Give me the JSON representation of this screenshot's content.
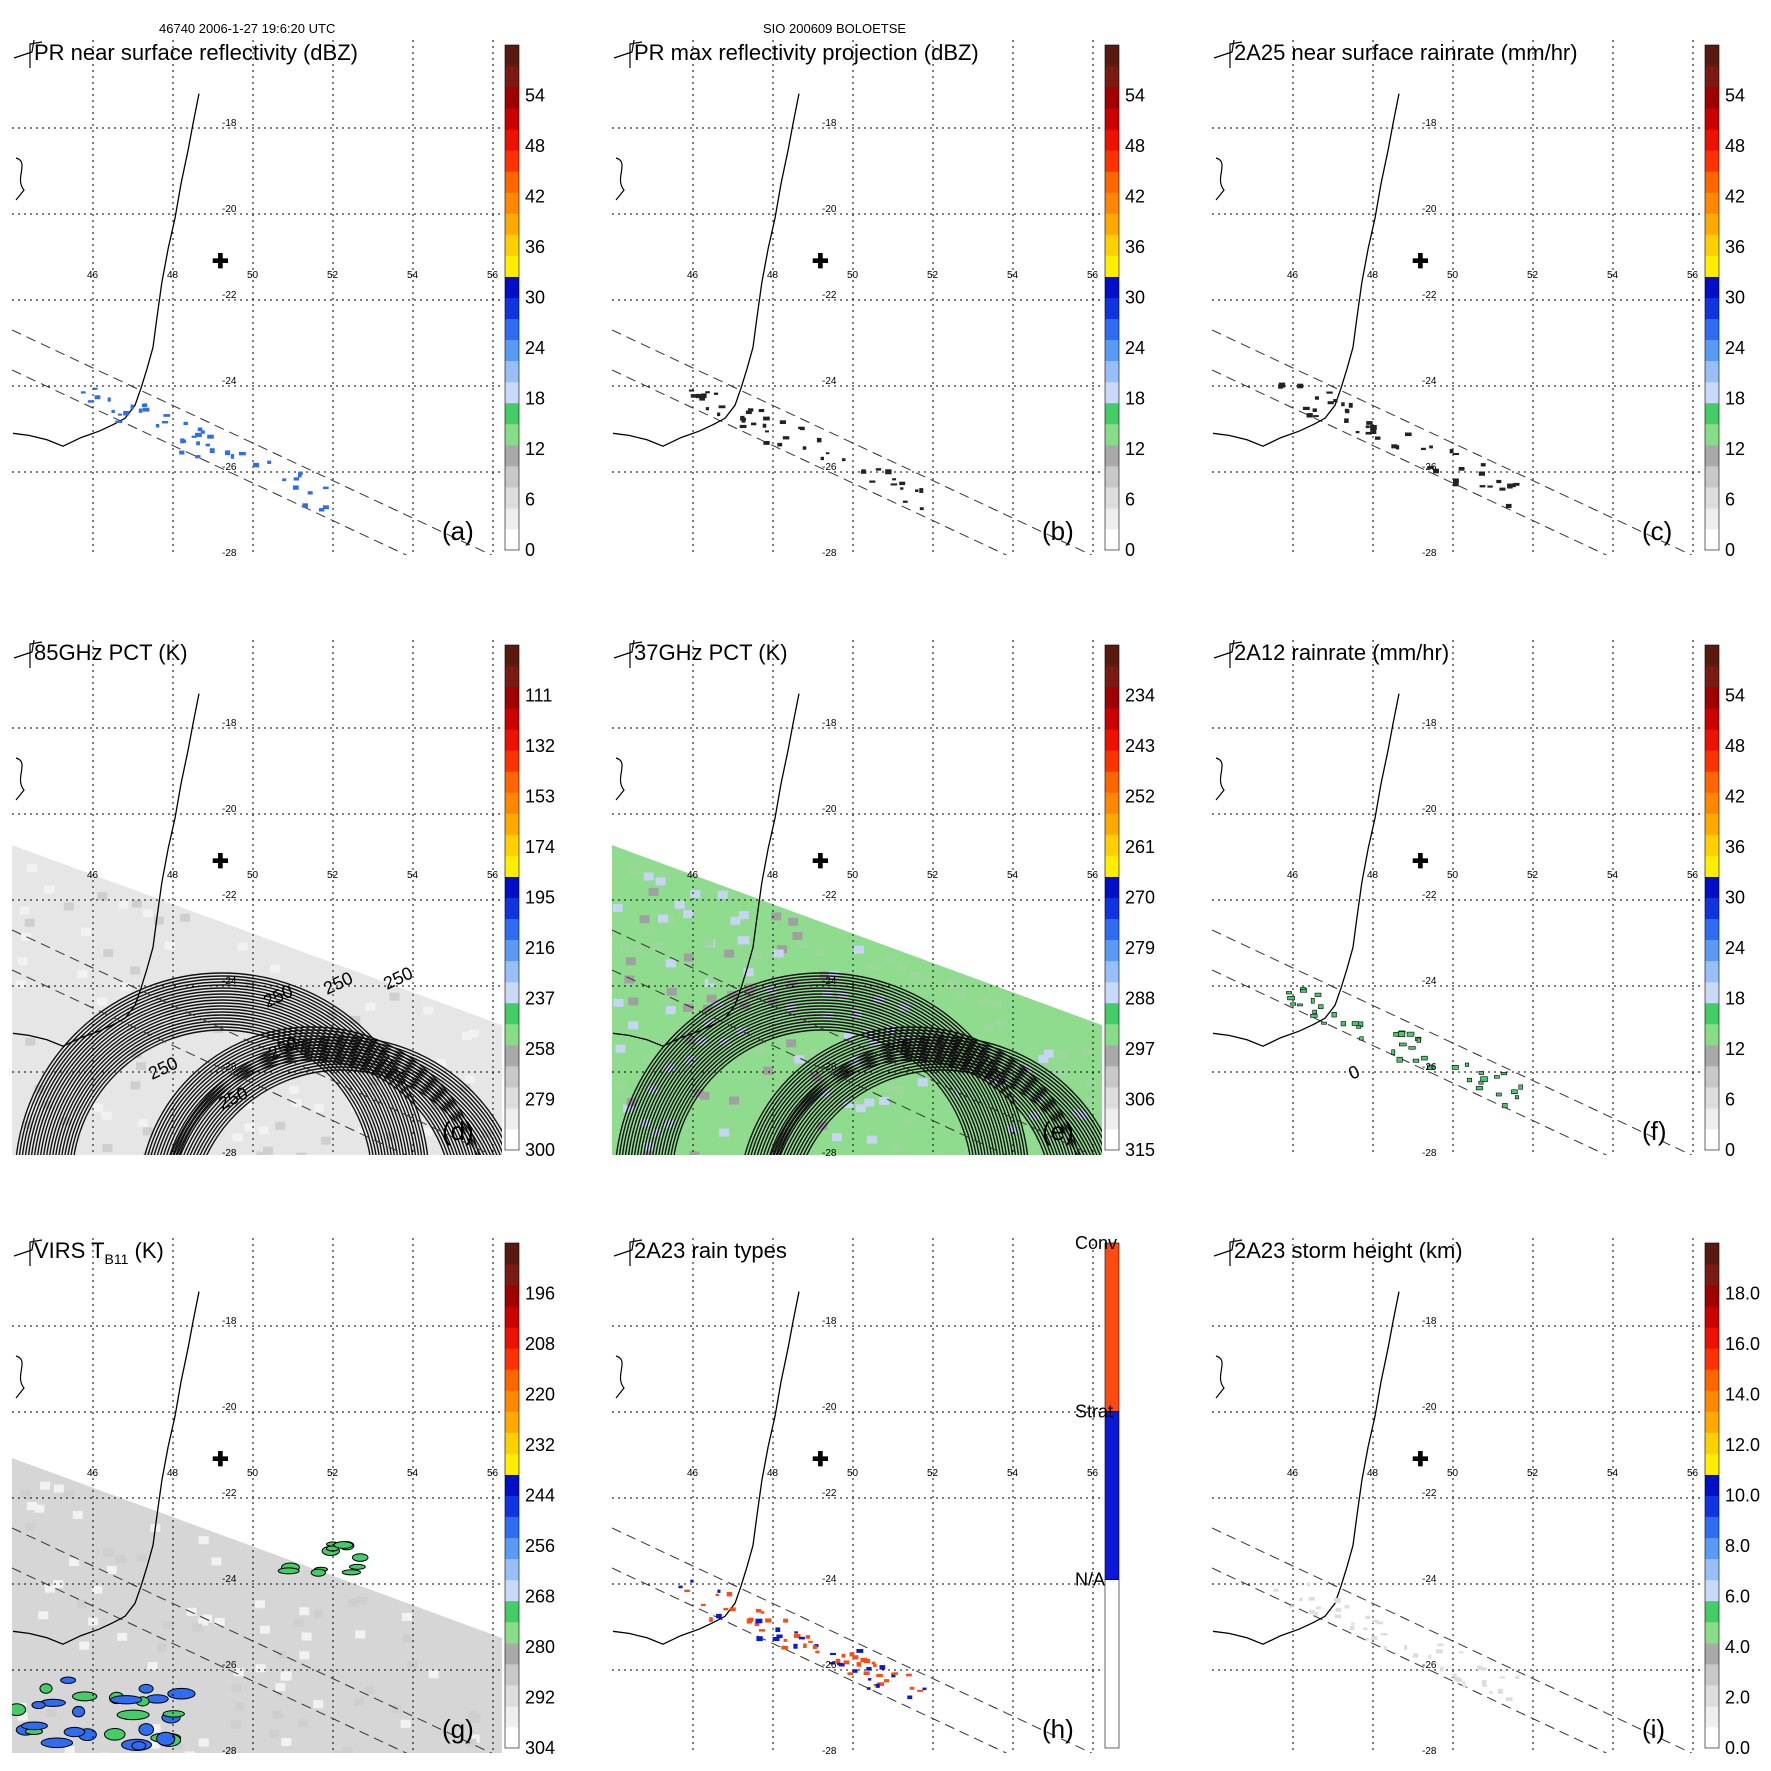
{
  "header": {
    "left": "46740 2006-1-27 19:6:20 UTC",
    "center": "SIO 200609 BOLOETSE"
  },
  "lon_ticks": [
    "46",
    "48",
    "50",
    "52",
    "54",
    "56"
  ],
  "lat_ticks": [
    "-18",
    "-20",
    "-22",
    "-24",
    "-26",
    "-28"
  ],
  "colors": {
    "scale": [
      "#ffffff",
      "#eeeeee",
      "#dddddd",
      "#c8c8c8",
      "#aaaaaa",
      "#88dd88",
      "#44cc66",
      "#c8d8f8",
      "#98c0f8",
      "#5a9cf5",
      "#2e6cf0",
      "#1034e0",
      "#0010c8",
      "#ffee00",
      "#ffd000",
      "#ffaa00",
      "#ff8800",
      "#ff6600",
      "#ff3300",
      "#ee1100",
      "#cc0000",
      "#a00000",
      "#7a1a10",
      "#5a1a10"
    ],
    "rain_types": [
      "#ffffff",
      "#0a18d8",
      "#ff4a10"
    ],
    "swath_land_gray": "#a0a0a0",
    "swath_green": "#8fdc8f",
    "swath_light": "#c8d4f4"
  },
  "panels": [
    {
      "id": "a",
      "title": "PR near surface reflectivity (dBZ)",
      "letter": "(a)",
      "ticks": [
        "0",
        "6",
        "12",
        "18",
        "24",
        "30",
        "36",
        "42",
        "48",
        "54"
      ]
    },
    {
      "id": "b",
      "title": "PR max reflectivity projection (dBZ)",
      "letter": "(b)",
      "ticks": [
        "0",
        "6",
        "12",
        "18",
        "24",
        "30",
        "36",
        "42",
        "48",
        "54"
      ]
    },
    {
      "id": "c",
      "title": "2A25 near surface rainrate (mm/hr)",
      "letter": "(c)",
      "ticks": [
        "0",
        "6",
        "12",
        "18",
        "24",
        "30",
        "36",
        "42",
        "48",
        "54"
      ]
    },
    {
      "id": "d",
      "title": "85GHz PCT (K)",
      "letter": "(d)",
      "ticks": [
        "300",
        "279",
        "258",
        "237",
        "216",
        "195",
        "174",
        "153",
        "132",
        "111"
      ],
      "contour_labels": [
        "250",
        "250",
        "250",
        "250",
        "250",
        "250"
      ]
    },
    {
      "id": "e",
      "title": "37GHz PCT (K)",
      "letter": "(e)",
      "ticks": [
        "315",
        "306",
        "297",
        "288",
        "279",
        "270",
        "261",
        "252",
        "243",
        "234"
      ]
    },
    {
      "id": "f",
      "title": "2A12 rainrate (mm/hr)",
      "letter": "(f)",
      "ticks": [
        "0",
        "6",
        "12",
        "18",
        "24",
        "30",
        "36",
        "42",
        "48",
        "54"
      ],
      "contour_labels": [
        "0"
      ]
    },
    {
      "id": "g",
      "title_main": "VIRS T",
      "title_sub": "B11",
      "title_end": " (K)",
      "letter": "(g)",
      "ticks": [
        "304",
        "292",
        "280",
        "268",
        "256",
        "244",
        "232",
        "220",
        "208",
        "196"
      ]
    },
    {
      "id": "h",
      "title": "2A23 rain types",
      "letter": "(h)",
      "ticks": [
        "N/A",
        "Strat",
        "Conv"
      ]
    },
    {
      "id": "i",
      "title": "2A23 storm height (km)",
      "letter": "(i)",
      "ticks": [
        "0.0",
        "2.0",
        "4.0",
        "6.0",
        "8.0",
        "10.0",
        "12.0",
        "14.0",
        "16.0",
        "18.0"
      ]
    }
  ]
}
